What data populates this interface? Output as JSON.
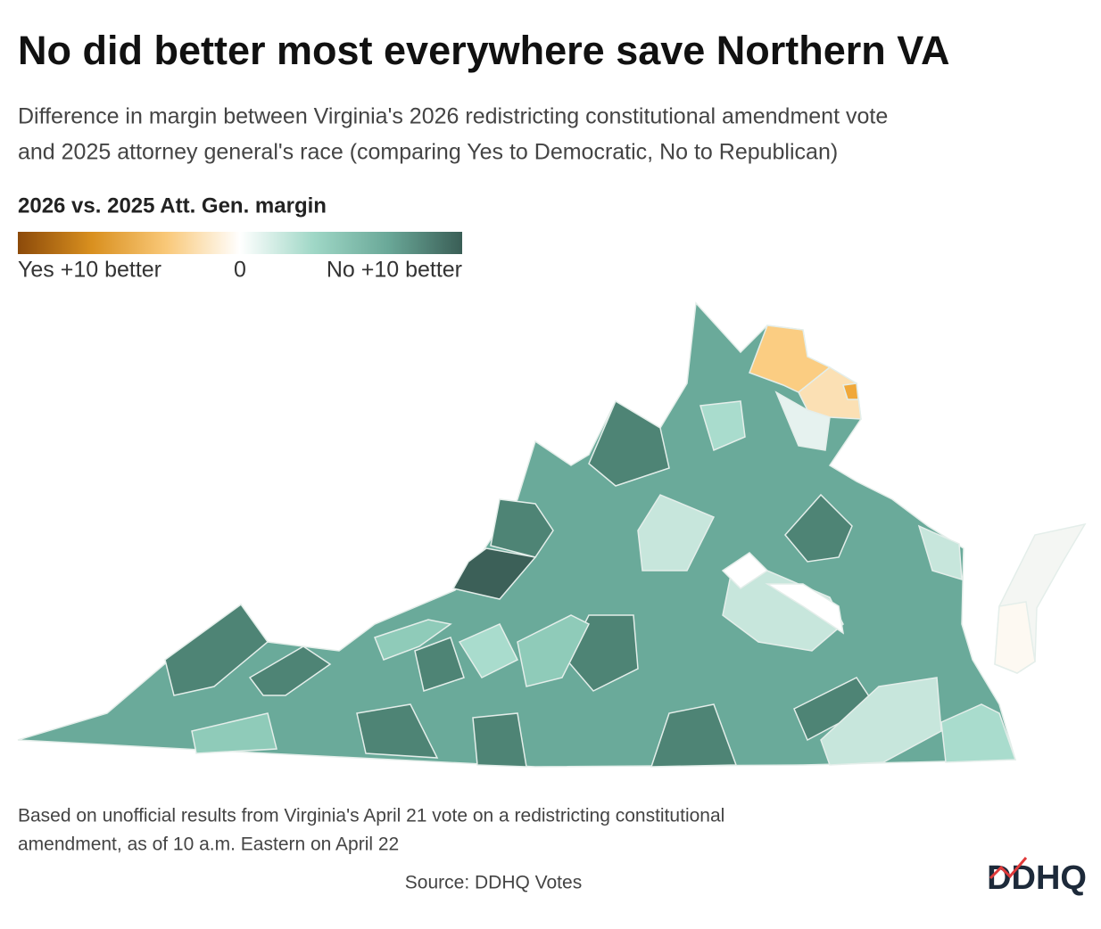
{
  "chart_data": {
    "type": "choropleth",
    "title": "No did better most everywhere save Northern VA",
    "subtitle": [
      "Difference in margin between Virginia's 2026 redistricting constitutional amendment vote",
      "and 2025 attorney general's race (comparing Yes to Democratic, No to Republican)"
    ],
    "legend": {
      "title": "2026 vs. 2025 Att. Gen. margin",
      "lim": [
        -10,
        10
      ],
      "ticks": [
        {
          "value": -10,
          "label": "Yes +10 better"
        },
        0,
        {
          "value": 10,
          "label": "No +10 better"
        }
      ],
      "colors": [
        "#8c4a0a",
        "#d9901f",
        "#f9c878",
        "#ffffff",
        "#9fd7c6",
        "#6aa898",
        "#3a5e56"
      ]
    },
    "notes": [
      "Based on unofficial results from Virginia's April 21 vote on a redistricting constitutional",
      "amendment, as of 10 a.m. Eastern on April 22"
    ],
    "source": "Source: DDHQ Votes",
    "logo": "DDHQ"
  }
}
